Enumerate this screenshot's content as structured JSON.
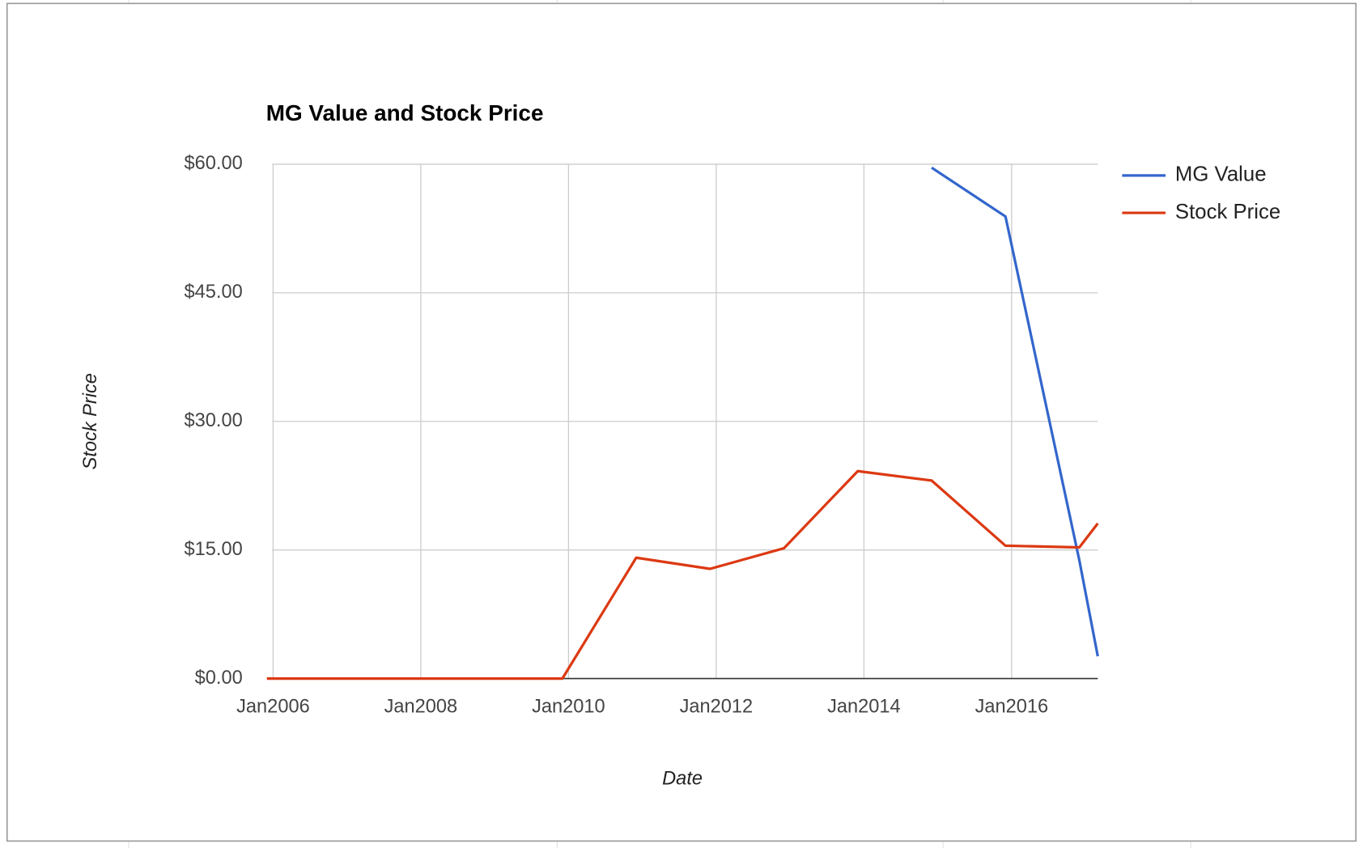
{
  "chart_data": {
    "type": "line",
    "title": "MG Value and Stock Price",
    "x_label": "Date",
    "y_label": "Stock Price",
    "x": [
      "2005-12",
      "2006-12",
      "2007-12",
      "2008-12",
      "2009-12",
      "2010-12",
      "2011-12",
      "2012-12",
      "2013-12",
      "2014-12",
      "2015-12",
      "2016-12",
      "2017-03"
    ],
    "series": [
      {
        "name": "MG Value",
        "color": "#3366cc",
        "values": [
          null,
          null,
          null,
          null,
          null,
          null,
          null,
          null,
          null,
          59.6,
          53.9,
          13.8,
          2.6
        ]
      },
      {
        "name": "Stock Price",
        "color": "#dc3912",
        "values": [
          0,
          0,
          0,
          0,
          0,
          14.1,
          12.8,
          15.2,
          24.2,
          23.1,
          15.5,
          15.3,
          18.1
        ]
      }
    ],
    "xlim": [
      "2005-12",
      "2017-03"
    ],
    "xticks": [
      {
        "value": "2006-01",
        "label": "Jan2006"
      },
      {
        "value": "2008-01",
        "label": "Jan2008"
      },
      {
        "value": "2010-01",
        "label": "Jan2010"
      },
      {
        "value": "2012-01",
        "label": "Jan2012"
      },
      {
        "value": "2014-01",
        "label": "Jan2014"
      },
      {
        "value": "2016-01",
        "label": "Jan2016"
      }
    ],
    "ylim": [
      0,
      60
    ],
    "yticks": [
      {
        "value": 0,
        "label": "$0.00"
      },
      {
        "value": 15,
        "label": "$15.00"
      },
      {
        "value": 30,
        "label": "$30.00"
      },
      {
        "value": 45,
        "label": "$45.00"
      },
      {
        "value": 60,
        "label": "$60.00"
      }
    ],
    "grid": true,
    "legend": "right"
  }
}
